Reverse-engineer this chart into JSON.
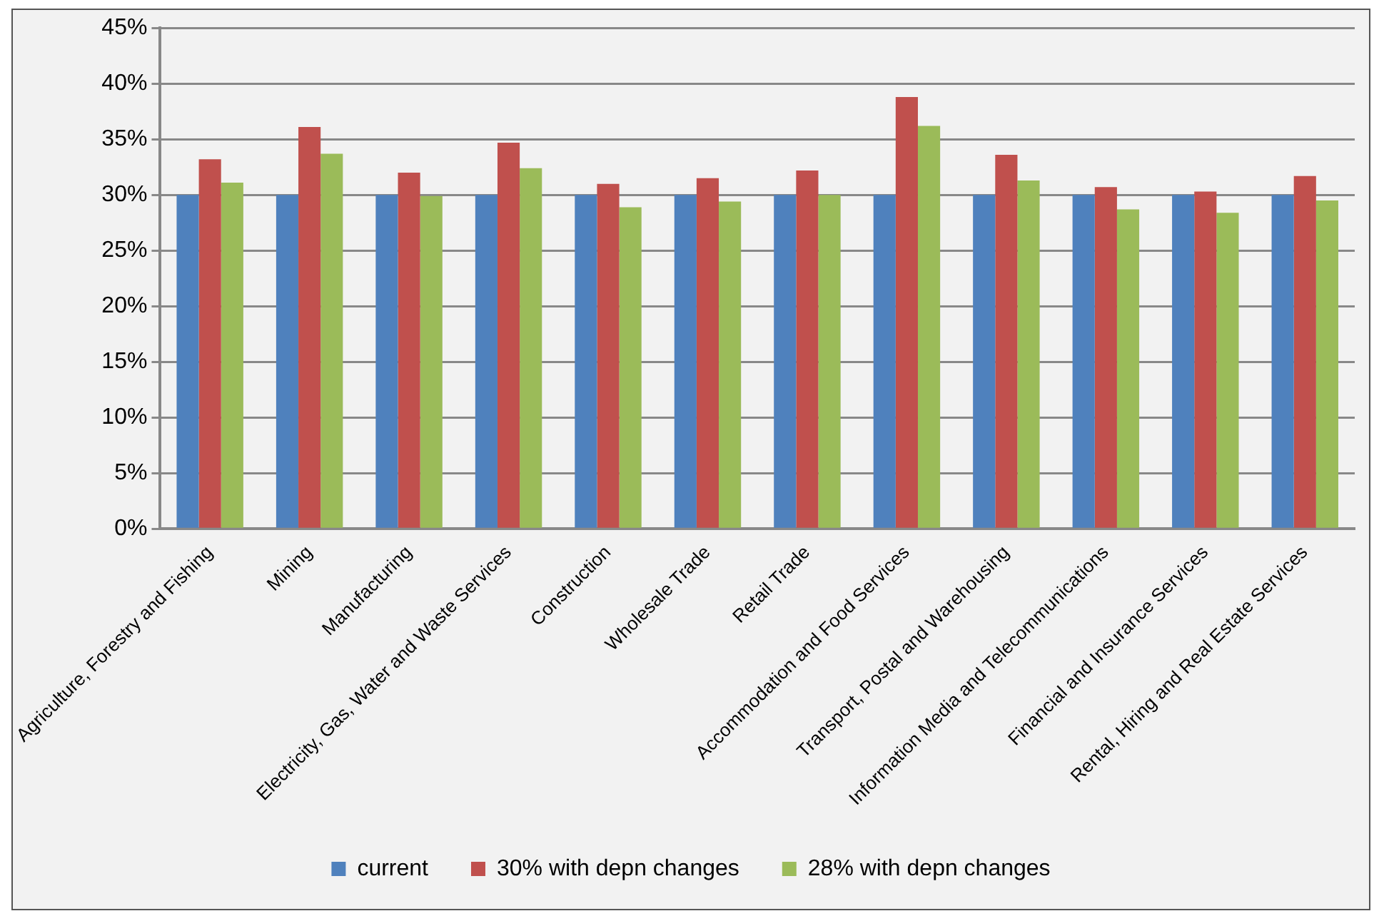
{
  "chart_data": {
    "type": "bar",
    "categories": [
      "Agriculture, Forestry and Fishing",
      "Mining",
      "Manufacturing",
      "Electricity, Gas, Water and Waste Services",
      "Construction",
      "Wholesale Trade",
      "Retail Trade",
      "Accommodation and Food Services",
      "Transport, Postal and Warehousing",
      "Information Media and Telecommunications",
      "Financial and Insurance Services",
      "Rental, Hiring and Real Estate Services"
    ],
    "series": [
      {
        "name": "current",
        "color": "#4f81bd",
        "values": [
          30,
          30,
          30,
          30,
          30,
          30,
          30,
          30,
          30,
          30,
          30,
          30
        ]
      },
      {
        "name": "30% with depn changes",
        "color": "#c0504d",
        "values": [
          33.2,
          36.1,
          32.0,
          34.7,
          31.0,
          31.5,
          32.2,
          38.8,
          33.6,
          30.7,
          30.3,
          31.7
        ]
      },
      {
        "name": "28% with depn changes",
        "color": "#9bbb59",
        "values": [
          31.1,
          33.7,
          29.9,
          32.4,
          28.9,
          29.4,
          30.0,
          36.2,
          31.3,
          28.7,
          28.4,
          29.5
        ]
      }
    ],
    "ylim": [
      0,
      45
    ],
    "yticks": [
      {
        "value": 0,
        "label": "0%"
      },
      {
        "value": 5,
        "label": "5%"
      },
      {
        "value": 10,
        "label": "10%"
      },
      {
        "value": 15,
        "label": "15%"
      },
      {
        "value": 20,
        "label": "20%"
      },
      {
        "value": 25,
        "label": "25%"
      },
      {
        "value": 30,
        "label": "30%"
      },
      {
        "value": 35,
        "label": "35%"
      },
      {
        "value": 40,
        "label": "40%"
      },
      {
        "value": 45,
        "label": "45%"
      }
    ],
    "grid": "y",
    "legend": "bottom"
  }
}
